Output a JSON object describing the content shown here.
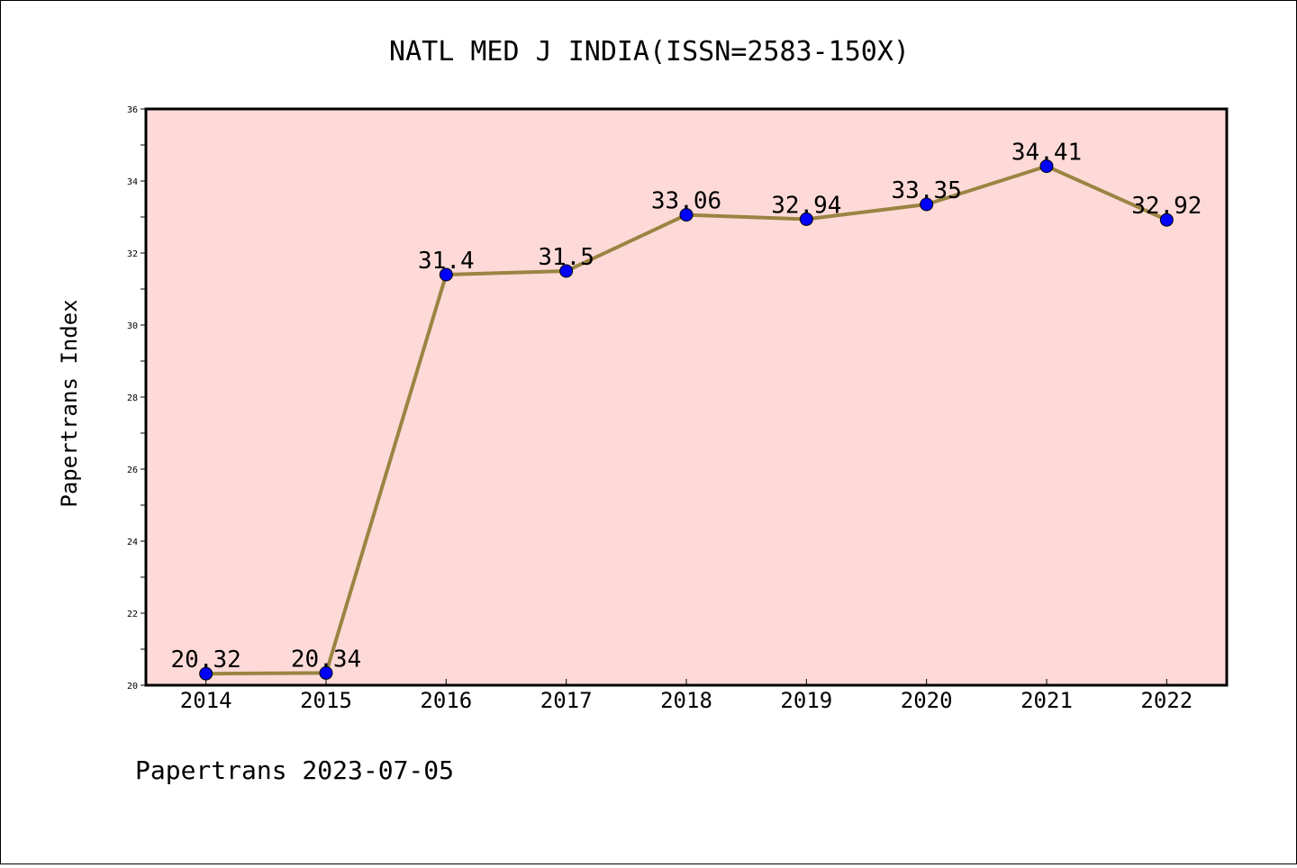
{
  "chart_data": {
    "type": "line",
    "title": "NATL MED J INDIA(ISSN=2583-150X)",
    "xlabel": "",
    "ylabel": "Papertrans Index",
    "footer": "Papertrans 2023-07-05",
    "categories": [
      "2014",
      "2015",
      "2016",
      "2017",
      "2018",
      "2019",
      "2020",
      "2021",
      "2022"
    ],
    "values": [
      20.32,
      20.34,
      31.4,
      31.5,
      33.06,
      32.94,
      33.35,
      34.41,
      32.92
    ],
    "value_labels": [
      "20.32",
      "20.34",
      "31.4",
      "31.5",
      "33.06",
      "32.94",
      "33.35",
      "34.41",
      "32.92"
    ],
    "ylim": [
      20,
      36
    ],
    "yticks": [
      20,
      22,
      24,
      26,
      28,
      30,
      32,
      34,
      36
    ],
    "grid": false,
    "colors": {
      "plot_background": "#fddad8",
      "line": "#9a8442",
      "marker": "#0000ff"
    }
  }
}
